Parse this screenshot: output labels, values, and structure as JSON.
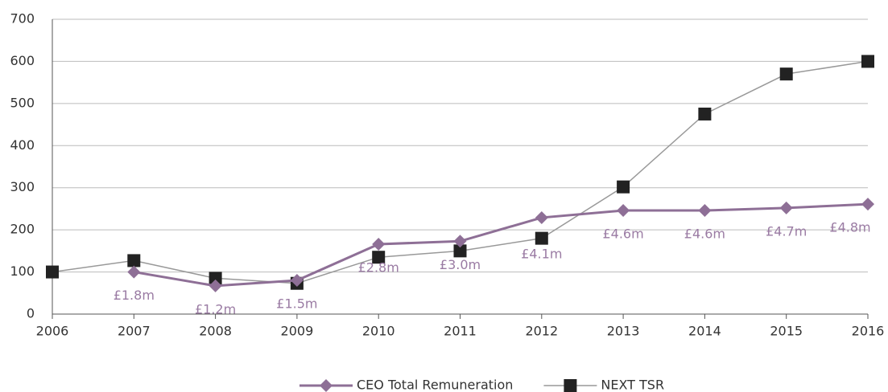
{
  "chart_data": {
    "type": "line",
    "x": [
      2006,
      2007,
      2008,
      2009,
      2010,
      2011,
      2012,
      2013,
      2014,
      2015,
      2016
    ],
    "series": [
      {
        "name": "CEO Total Remuneration",
        "color": "#8e6f96",
        "marker": "diamond",
        "values": [
          null,
          100,
          67,
          80,
          166,
          173,
          229,
          246,
          246,
          252,
          261
        ],
        "remuneration_labels": [
          null,
          "£1.8m",
          "£1.2m",
          "£1.5m",
          "£2.8m",
          "£3.0m",
          "£4.1m",
          "£4.6m",
          "£4.6m",
          "£4.7m",
          "£4.8m"
        ]
      },
      {
        "name": "NEXT TSR",
        "color": "#222222",
        "line_color": "#999999",
        "marker": "square",
        "values": [
          100,
          127,
          85,
          73,
          135,
          150,
          180,
          302,
          475,
          570,
          600
        ]
      }
    ],
    "xlim": [
      2006,
      2016
    ],
    "xticks": [
      2006,
      2007,
      2008,
      2009,
      2010,
      2011,
      2012,
      2013,
      2014,
      2015,
      2016
    ],
    "ylim": [
      0,
      700
    ],
    "yticks": [
      0,
      100,
      200,
      300,
      400,
      500,
      600,
      700
    ],
    "grid": true,
    "legend": "bottom"
  }
}
